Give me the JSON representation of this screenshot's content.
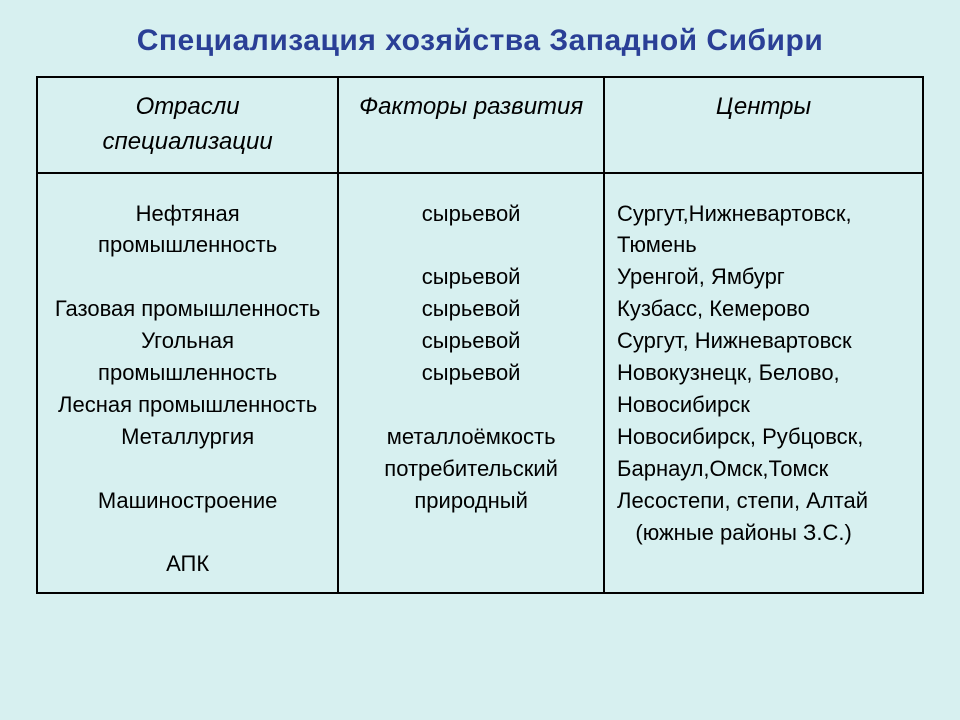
{
  "title": "Специализация хозяйства Западной Сибири",
  "colors": {
    "background": "#d7f0f0",
    "title": "#2a3f96",
    "border": "#000000",
    "text": "#000000"
  },
  "table": {
    "type": "table",
    "columns": [
      {
        "label": "Отрасли специализации",
        "width_pct": 34,
        "align": "center"
      },
      {
        "label": "Факторы развития",
        "width_pct": 30,
        "align": "center"
      },
      {
        "label": "Центры",
        "width_pct": 36,
        "align": "left"
      }
    ],
    "header_fontsize": 24,
    "body_fontsize": 22,
    "header_style": "italic",
    "rows": [
      {
        "industry": "Нефтяная промышленность",
        "factor": "сырьевой",
        "centers": "Сургут,Нижневартовск, Тюмень"
      },
      {
        "industry": "Газовая промышленность",
        "factor": "сырьевой",
        "centers": "Уренгой, Ямбург"
      },
      {
        "industry": "Угольная промышленность",
        "factor": "сырьевой",
        "centers": "Кузбасс, Кемерово"
      },
      {
        "industry": "Лесная промышленность",
        "factor": "сырьевой",
        "centers": "Сургут, Нижневартовск"
      },
      {
        "industry": "Металлургия",
        "factor": "сырьевой",
        "centers": "Новокузнецк, Белово, Новосибирск"
      },
      {
        "industry": "Машиностроение",
        "factor": "металлоёмкость потребительский",
        "centers": "Новосибирск, Рубцовск, Барнаул,Омск,Томск"
      },
      {
        "industry": "АПК",
        "factor": "природный",
        "centers": "Лесостепи, степи, Алтай    (южные районы З.С.)"
      }
    ],
    "cell_lines": {
      "industries": [
        "Нефтяная промышленность",
        "",
        "Газовая промышленность",
        "Угольная промышленность",
        "Лесная промышленность",
        "Металлургия",
        "",
        "Машиностроение",
        "",
        "АПК"
      ],
      "factors": [
        "сырьевой",
        "",
        "сырьевой",
        "сырьевой",
        "сырьевой",
        "сырьевой",
        "",
        "металлоёмкость",
        "потребительский",
        "природный"
      ],
      "centers": [
        "Сургут,Нижневартовск,",
        "Тюмень",
        "Уренгой, Ямбург",
        "Кузбасс, Кемерово",
        "Сургут, Нижневартовск",
        "Новокузнецк, Белово,",
        "Новосибирск",
        "Новосибирск, Рубцовск,",
        "Барнаул,Омск,Томск",
        "Лесостепи, степи, Алтай",
        "   (южные районы З.С.)"
      ]
    }
  }
}
